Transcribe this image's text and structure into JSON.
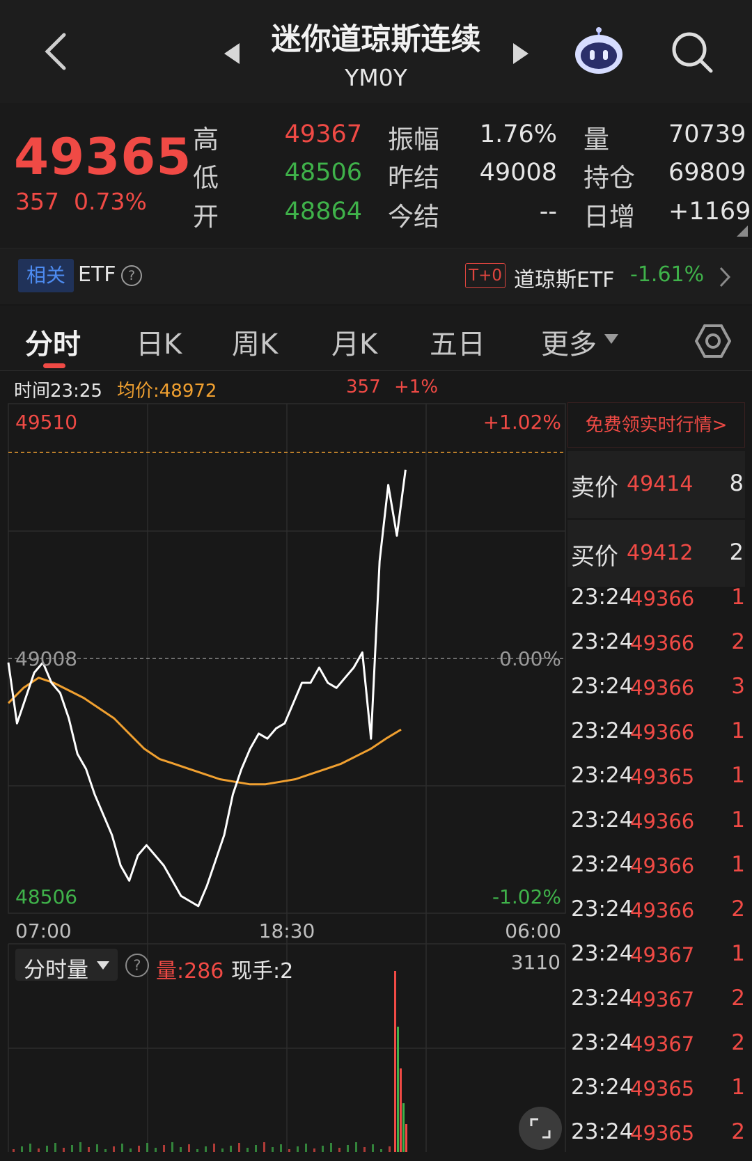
{
  "header": {
    "title": "迷你道琼斯连续",
    "subtitle": "YM0Y"
  },
  "quote": {
    "last_price": "49365",
    "change_abs": "357",
    "change_pct": "0.73%",
    "stats": [
      {
        "label": "高",
        "value": "49367"
      },
      {
        "label": "低",
        "value": "48506"
      },
      {
        "label": "开",
        "value": "48864"
      },
      {
        "label": "振幅",
        "value": "1.76%"
      },
      {
        "label": "昨结",
        "value": "49008"
      },
      {
        "label": "今结",
        "value": "--"
      },
      {
        "label": "量",
        "value": "70739"
      },
      {
        "label": "持仓",
        "value": "69809"
      },
      {
        "label": "日增",
        "value": "+1169"
      }
    ]
  },
  "etf": {
    "tag": "相关",
    "label": "ETF",
    "help": "?",
    "badge": "T+0",
    "name": "道琼斯ETF",
    "change": "-1.61%"
  },
  "tabs": [
    "分时",
    "日K",
    "周K",
    "月K",
    "五日",
    "更多"
  ],
  "info": {
    "time": "时间23:25",
    "avg": "均价:48972",
    "change": "357",
    "pct": "+1%"
  },
  "chart_data": {
    "type": "line",
    "title": "",
    "x_ticks": [
      "07:00",
      "18:30",
      "06:00"
    ],
    "ylim": [
      48506,
      49510
    ],
    "y_labels_left": [
      "49510",
      "49008",
      "48506"
    ],
    "y_labels_right": [
      "+1.02%",
      "0.00%",
      "-1.02%"
    ],
    "reference_price": 49008,
    "current_price_line": 49414,
    "series": [
      {
        "name": "price",
        "color": "#ffffff",
        "values": [
          49000,
          48880,
          48930,
          48980,
          49000,
          48960,
          48940,
          48890,
          48820,
          48790,
          48740,
          48700,
          48660,
          48600,
          48570,
          48620,
          48640,
          48620,
          48600,
          48570,
          48540,
          48530,
          48520,
          48560,
          48610,
          48660,
          48740,
          48790,
          48830,
          48860,
          48850,
          48870,
          48880,
          48920,
          48960,
          48960,
          48990,
          48960,
          48950,
          48970,
          48990,
          49020,
          48850,
          49200,
          49350,
          49250,
          49380
        ]
      },
      {
        "name": "avg",
        "color": "#f0a030",
        "values": [
          48920,
          48950,
          48970,
          48960,
          48945,
          48930,
          48910,
          48890,
          48860,
          48830,
          48810,
          48800,
          48790,
          48780,
          48770,
          48765,
          48760,
          48760,
          48765,
          48770,
          48780,
          48790,
          48800,
          48815,
          48830,
          48850,
          48868
        ]
      }
    ]
  },
  "order_book": {
    "promo": "免费领实时行情>",
    "ask": {
      "label": "卖价",
      "price": "49414",
      "qty": "8"
    },
    "bid": {
      "label": "买价",
      "price": "49412",
      "qty": "2"
    }
  },
  "ticks": [
    {
      "time": "23:24",
      "price": "49366",
      "qty": "1"
    },
    {
      "time": "23:24",
      "price": "49366",
      "qty": "2"
    },
    {
      "time": "23:24",
      "price": "49366",
      "qty": "3"
    },
    {
      "time": "23:24",
      "price": "49366",
      "qty": "1"
    },
    {
      "time": "23:24",
      "price": "49365",
      "qty": "1"
    },
    {
      "time": "23:24",
      "price": "49366",
      "qty": "1"
    },
    {
      "time": "23:24",
      "price": "49366",
      "qty": "1"
    },
    {
      "time": "23:24",
      "price": "49366",
      "qty": "2"
    },
    {
      "time": "23:24",
      "price": "49367",
      "qty": "1"
    },
    {
      "time": "23:24",
      "price": "49367",
      "qty": "2"
    },
    {
      "time": "23:24",
      "price": "49367",
      "qty": "2"
    },
    {
      "time": "23:24",
      "price": "49365",
      "qty": "1"
    },
    {
      "time": "23:24",
      "price": "49365",
      "qty": "2"
    }
  ],
  "volume": {
    "selector": "分时量",
    "help": "?",
    "amount": "量:286",
    "hand": "现手:2",
    "max": "3110"
  }
}
